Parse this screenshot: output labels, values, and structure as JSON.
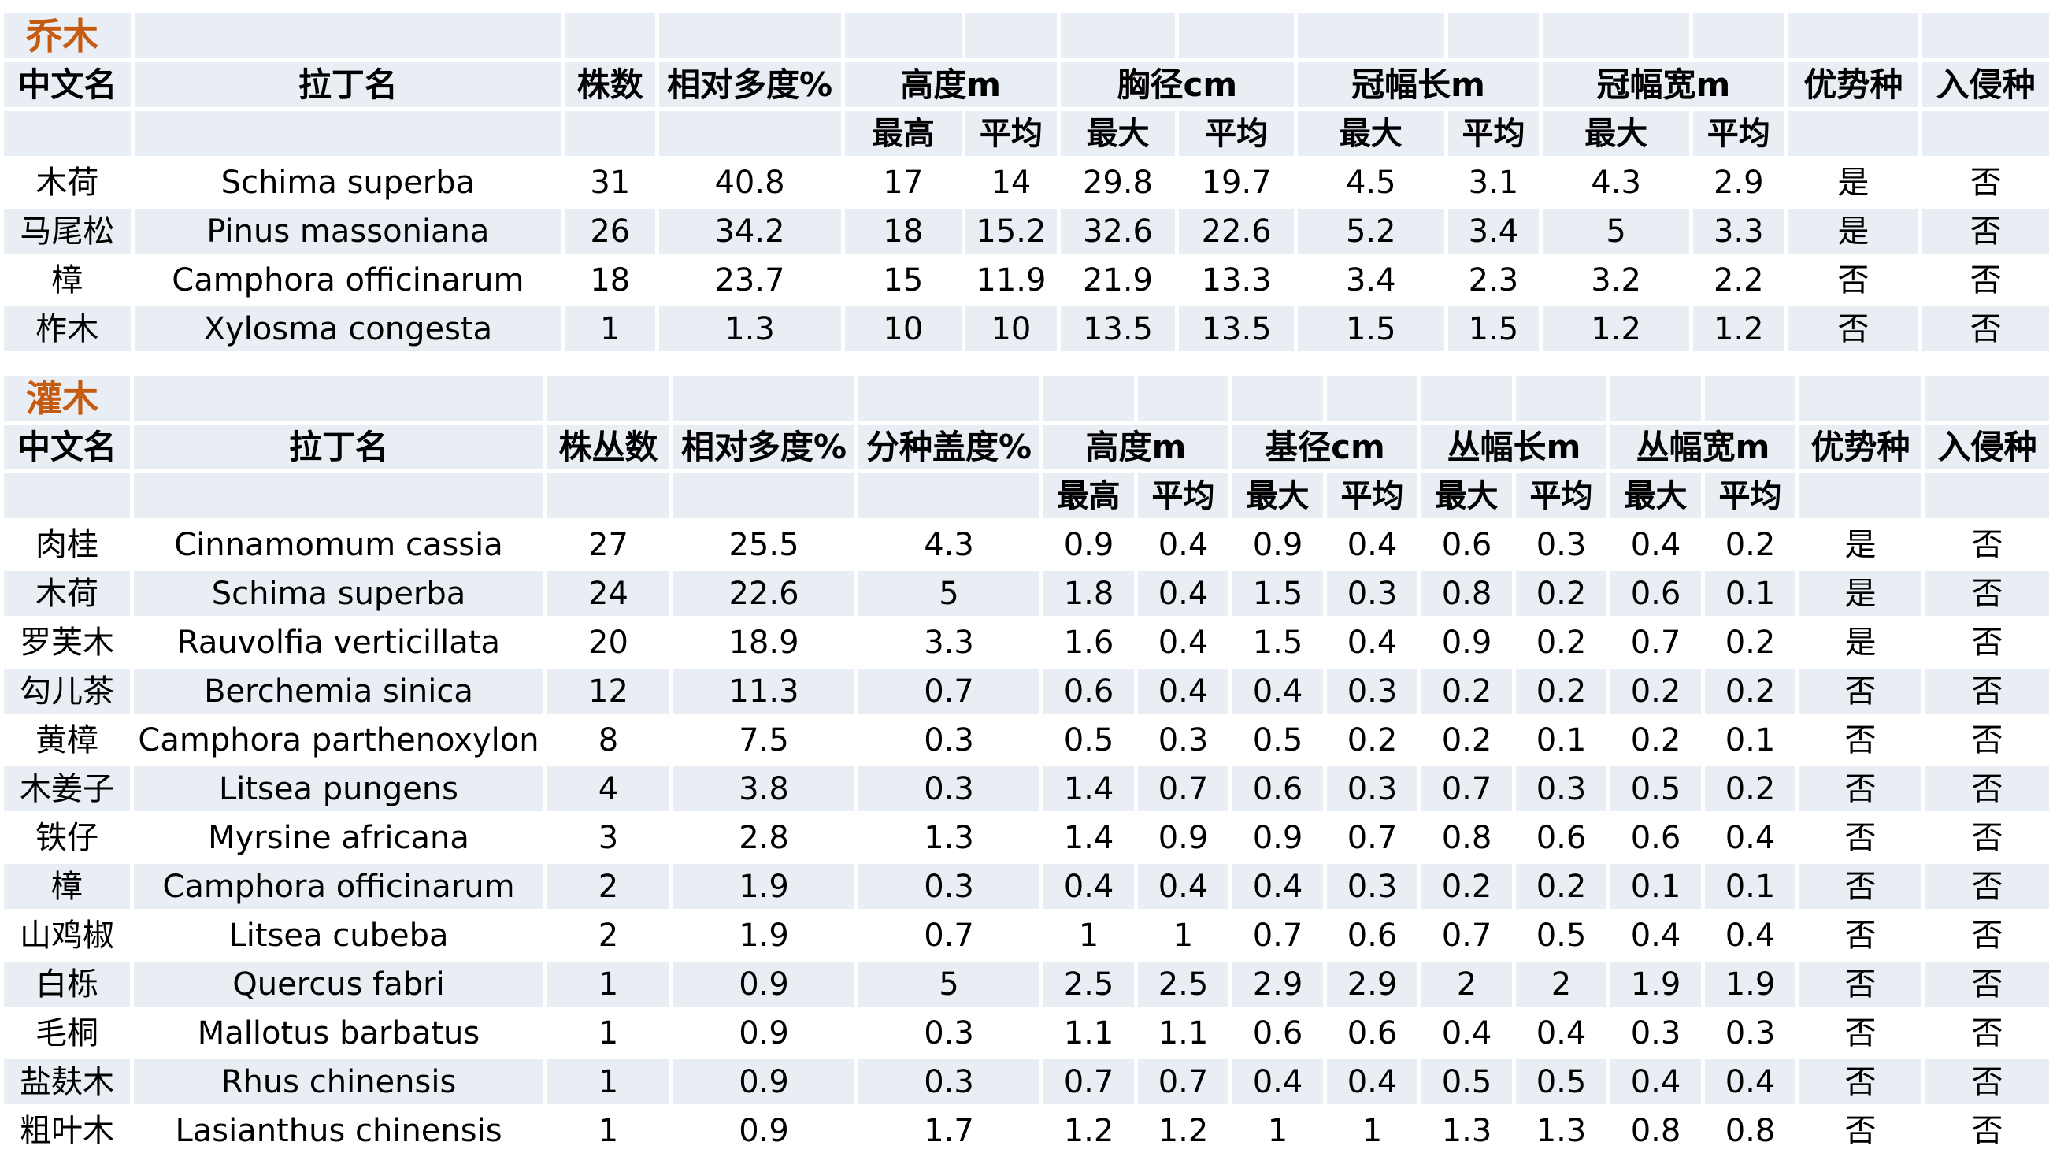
{
  "tree": {
    "section_title": "乔木",
    "headers": [
      "中文名",
      "拉丁名",
      "株数",
      "相对多度%",
      "高度m",
      "胸径cm",
      "冠幅长m",
      "冠幅宽m",
      "优势种",
      "入侵种"
    ],
    "subheaders": [
      "最高",
      "平均",
      "最大",
      "平均",
      "最大",
      "平均",
      "最大",
      "平均"
    ],
    "rows": [
      [
        "木荷",
        "Schima superba",
        "31",
        "40.8",
        "17",
        "14",
        "29.8",
        "19.7",
        "4.5",
        "3.1",
        "4.3",
        "2.9",
        "是",
        "否"
      ],
      [
        "马尾松",
        "Pinus massoniana",
        "26",
        "34.2",
        "18",
        "15.2",
        "32.6",
        "22.6",
        "5.2",
        "3.4",
        "5",
        "3.3",
        "是",
        "否"
      ],
      [
        "樟",
        "Camphora officinarum",
        "18",
        "23.7",
        "15",
        "11.9",
        "21.9",
        "13.3",
        "3.4",
        "2.3",
        "3.2",
        "2.2",
        "否",
        "否"
      ],
      [
        "柞木",
        "Xylosma congesta",
        "1",
        "1.3",
        "10",
        "10",
        "13.5",
        "13.5",
        "1.5",
        "1.5",
        "1.2",
        "1.2",
        "否",
        "否"
      ]
    ]
  },
  "shrub": {
    "section_title": "灌木",
    "headers": [
      "中文名",
      "拉丁名",
      "株丛数",
      "相对多度%",
      "分种盖度%",
      "高度m",
      "基径cm",
      "丛幅长m",
      "丛幅宽m",
      "优势种",
      "入侵种"
    ],
    "subheaders": [
      "最高",
      "平均",
      "最大",
      "平均",
      "最大",
      "平均",
      "最大",
      "平均"
    ],
    "rows": [
      [
        "肉桂",
        "Cinnamomum cassia",
        "27",
        "25.5",
        "4.3",
        "0.9",
        "0.4",
        "0.9",
        "0.4",
        "0.6",
        "0.3",
        "0.4",
        "0.2",
        "是",
        "否"
      ],
      [
        "木荷",
        "Schima superba",
        "24",
        "22.6",
        "5",
        "1.8",
        "0.4",
        "1.5",
        "0.3",
        "0.8",
        "0.2",
        "0.6",
        "0.1",
        "是",
        "否"
      ],
      [
        "罗芙木",
        "Rauvolfia verticillata",
        "20",
        "18.9",
        "3.3",
        "1.6",
        "0.4",
        "1.5",
        "0.4",
        "0.9",
        "0.2",
        "0.7",
        "0.2",
        "是",
        "否"
      ],
      [
        "勾儿茶",
        "Berchemia sinica",
        "12",
        "11.3",
        "0.7",
        "0.6",
        "0.4",
        "0.4",
        "0.3",
        "0.2",
        "0.2",
        "0.2",
        "0.2",
        "否",
        "否"
      ],
      [
        "黄樟",
        "Camphora parthenoxylon",
        "8",
        "7.5",
        "0.3",
        "0.5",
        "0.3",
        "0.5",
        "0.2",
        "0.2",
        "0.1",
        "0.2",
        "0.1",
        "否",
        "否"
      ],
      [
        "木姜子",
        "Litsea pungens",
        "4",
        "3.8",
        "0.3",
        "1.4",
        "0.7",
        "0.6",
        "0.3",
        "0.7",
        "0.3",
        "0.5",
        "0.2",
        "否",
        "否"
      ],
      [
        "铁仔",
        "Myrsine africana",
        "3",
        "2.8",
        "1.3",
        "1.4",
        "0.9",
        "0.9",
        "0.7",
        "0.8",
        "0.6",
        "0.6",
        "0.4",
        "否",
        "否"
      ],
      [
        "樟",
        "Camphora officinarum",
        "2",
        "1.9",
        "0.3",
        "0.4",
        "0.4",
        "0.4",
        "0.3",
        "0.2",
        "0.2",
        "0.1",
        "0.1",
        "否",
        "否"
      ],
      [
        "山鸡椒",
        "Litsea cubeba",
        "2",
        "1.9",
        "0.7",
        "1",
        "1",
        "0.7",
        "0.6",
        "0.7",
        "0.5",
        "0.4",
        "0.4",
        "否",
        "否"
      ],
      [
        "白栎",
        "Quercus fabri",
        "1",
        "0.9",
        "5",
        "2.5",
        "2.5",
        "2.9",
        "2.9",
        "2",
        "2",
        "1.9",
        "1.9",
        "否",
        "否"
      ],
      [
        "毛桐",
        "Mallotus barbatus",
        "1",
        "0.9",
        "0.3",
        "1.1",
        "1.1",
        "0.6",
        "0.6",
        "0.4",
        "0.4",
        "0.3",
        "0.3",
        "否",
        "否"
      ],
      [
        "盐麸木",
        "Rhus chinensis",
        "1",
        "0.9",
        "0.3",
        "0.7",
        "0.7",
        "0.4",
        "0.4",
        "0.5",
        "0.5",
        "0.4",
        "0.4",
        "否",
        "否"
      ],
      [
        "粗叶木",
        "Lasianthus chinensis",
        "1",
        "0.9",
        "1.7",
        "1.2",
        "1.2",
        "1",
        "1",
        "1.3",
        "1.3",
        "0.8",
        "0.8",
        "否",
        "否"
      ]
    ]
  }
}
